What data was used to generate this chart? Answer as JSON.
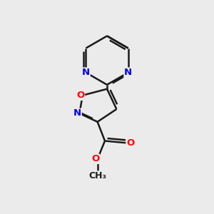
{
  "background_color": "#ebebeb",
  "bond_color": "#1a1a1a",
  "atom_colors": {
    "N": "#0000ee",
    "O": "#ff0000",
    "C": "#1a1a1a"
  },
  "bond_width": 1.8,
  "figsize": [
    3.0,
    3.0
  ],
  "dpi": 100
}
